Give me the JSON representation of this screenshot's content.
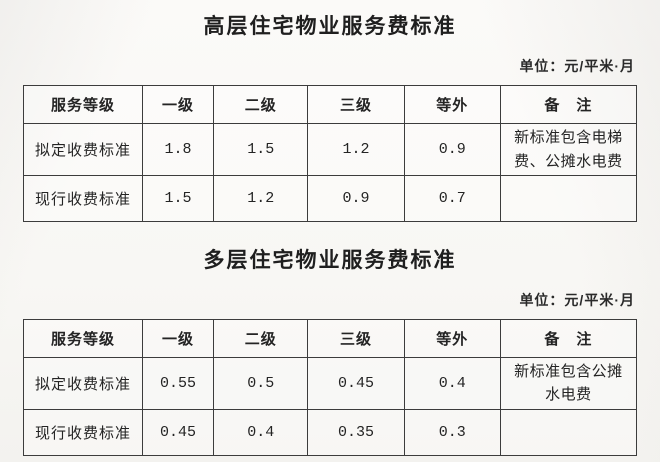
{
  "sections": [
    {
      "title": "高层住宅物业服务费标准",
      "unit_label": "单位：元/平米·月",
      "table": {
        "headers": [
          "服务等级",
          "一级",
          "二级",
          "三级",
          "等外",
          "备　注"
        ],
        "rows": [
          {
            "label": "拟定收费标准",
            "values": [
              "1.8",
              "1.5",
              "1.2",
              "0.9"
            ],
            "remark": "新标准包含电梯费、公摊水电费"
          },
          {
            "label": "现行收费标准",
            "values": [
              "1.5",
              "1.2",
              "0.9",
              "0.7"
            ],
            "remark": ""
          }
        ]
      }
    },
    {
      "title": "多层住宅物业服务费标准",
      "unit_label": "单位：元/平米·月",
      "table": {
        "headers": [
          "服务等级",
          "一级",
          "二级",
          "三级",
          "等外",
          "备　注"
        ],
        "rows": [
          {
            "label": "拟定收费标准",
            "values": [
              "0.55",
              "0.5",
              "0.45",
              "0.4"
            ],
            "remark": "新标准包含公摊水电费"
          },
          {
            "label": "现行收费标准",
            "values": [
              "0.45",
              "0.4",
              "0.35",
              "0.3"
            ],
            "remark": ""
          }
        ]
      }
    }
  ]
}
